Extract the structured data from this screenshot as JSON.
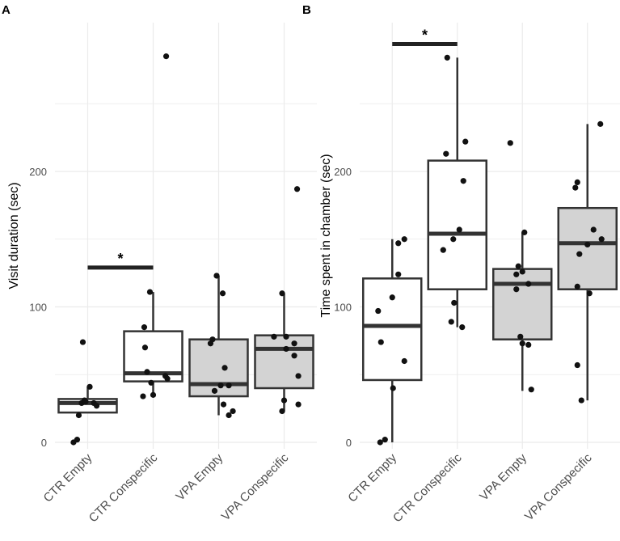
{
  "colors": {
    "white_box": "#ffffff",
    "grey_box": "#d3d3d3",
    "stroke": "#333333",
    "point": "#111111",
    "grid": "#ebebeb"
  },
  "chart_data": [
    {
      "type": "box",
      "panel": "A",
      "ylabel": "Visit duration (sec)",
      "xlabel": "",
      "categories": [
        "CTR Empty",
        "CTR Conspecific",
        "VPA Empty",
        "VPA Conspecific"
      ],
      "ylim": [
        -8,
        298
      ],
      "yticks": [
        0,
        100,
        200
      ],
      "grid": true,
      "boxes": [
        {
          "fill": "white",
          "q1": 22,
          "median": 29,
          "q3": 32,
          "whisker_low": 22,
          "whisker_high": 41,
          "points": [
            [
              -0.35,
              0
            ],
            [
              -0.26,
              2
            ],
            [
              -0.22,
              20
            ],
            [
              -0.08,
              31
            ],
            [
              -0.15,
              29
            ],
            [
              -0.05,
              30
            ],
            [
              0.05,
              41
            ],
            [
              0.15,
              29
            ],
            [
              0.22,
              27
            ],
            [
              -0.12,
              74
            ]
          ]
        },
        {
          "fill": "white",
          "q1": 45,
          "median": 51,
          "q3": 82,
          "whisker_low": 35,
          "whisker_high": 111,
          "points": [
            [
              -0.25,
              34
            ],
            [
              0.0,
              35
            ],
            [
              -0.2,
              70
            ],
            [
              -0.15,
              52
            ],
            [
              -0.22,
              85
            ],
            [
              -0.08,
              111
            ],
            [
              -0.05,
              44
            ],
            [
              0.3,
              49
            ],
            [
              0.35,
              47
            ],
            [
              0.32,
              285
            ]
          ]
        },
        {
          "fill": "grey",
          "q1": 34,
          "median": 43,
          "q3": 76,
          "whisker_low": 20,
          "whisker_high": 123,
          "points": [
            [
              -0.1,
              38
            ],
            [
              -0.2,
              73
            ],
            [
              -0.15,
              76
            ],
            [
              -0.05,
              123
            ],
            [
              0.1,
              110
            ],
            [
              0.15,
              55
            ],
            [
              0.05,
              42
            ],
            [
              0.25,
              42
            ],
            [
              0.12,
              28
            ],
            [
              0.25,
              20
            ],
            [
              0.35,
              23
            ]
          ]
        },
        {
          "fill": "grey",
          "q1": 40,
          "median": 69,
          "q3": 79,
          "whisker_low": 23,
          "whisker_high": 110,
          "points": [
            [
              -0.25,
              78
            ],
            [
              -0.05,
              110
            ],
            [
              0.05,
              78
            ],
            [
              0.05,
              69
            ],
            [
              0.25,
              73
            ],
            [
              0.25,
              64
            ],
            [
              0.35,
              49
            ],
            [
              0.35,
              28
            ],
            [
              0.0,
              31
            ],
            [
              -0.05,
              23
            ],
            [
              0.32,
              187
            ]
          ]
        }
      ],
      "significance": {
        "from": "CTR Empty",
        "to": "CTR Conspecific",
        "y": 129,
        "label": "*"
      }
    },
    {
      "type": "box",
      "panel": "B",
      "ylabel": "Time spent in chamber (sec)",
      "xlabel": "",
      "categories": [
        "CTR Empty",
        "CTR Conspecific",
        "VPA Empty",
        "VPA Conspecific"
      ],
      "ylim": [
        -8,
        298
      ],
      "yticks": [
        0,
        100,
        200
      ],
      "grid": true,
      "boxes": [
        {
          "fill": "white",
          "q1": 46,
          "median": 86,
          "q3": 121,
          "whisker_low": 0,
          "whisker_high": 150,
          "points": [
            [
              -0.3,
              0
            ],
            [
              -0.18,
              2
            ],
            [
              -0.35,
              97
            ],
            [
              -0.28,
              74
            ],
            [
              0.0,
              107
            ],
            [
              0.15,
              147
            ],
            [
              0.3,
              150
            ],
            [
              0.15,
              124
            ],
            [
              0.3,
              60
            ],
            [
              0.02,
              40
            ]
          ]
        },
        {
          "fill": "white",
          "q1": 113,
          "median": 154,
          "q3": 208,
          "whisker_low": 85,
          "whisker_high": 284,
          "points": [
            [
              -0.25,
              284
            ],
            [
              -0.28,
              213
            ],
            [
              -0.35,
              142
            ],
            [
              -0.1,
              150
            ],
            [
              -0.08,
              103
            ],
            [
              -0.15,
              89
            ],
            [
              0.05,
              157
            ],
            [
              0.12,
              85
            ],
            [
              0.15,
              193
            ],
            [
              0.2,
              222
            ]
          ]
        },
        {
          "fill": "grey",
          "q1": 76,
          "median": 117,
          "q3": 128,
          "whisker_low": 38,
          "whisker_high": 155,
          "points": [
            [
              -0.3,
              221
            ],
            [
              -0.1,
              130
            ],
            [
              -0.15,
              124
            ],
            [
              -0.15,
              113
            ],
            [
              0.0,
              126
            ],
            [
              0.05,
              155
            ],
            [
              0.15,
              117
            ],
            [
              -0.05,
              78
            ],
            [
              0.0,
              73
            ],
            [
              0.15,
              72
            ],
            [
              0.22,
              39
            ]
          ]
        },
        {
          "fill": "grey",
          "q1": 113,
          "median": 147,
          "q3": 173,
          "whisker_low": 31,
          "whisker_high": 235,
          "points": [
            [
              -0.3,
              188
            ],
            [
              -0.25,
              192
            ],
            [
              -0.2,
              139
            ],
            [
              -0.25,
              115
            ],
            [
              0.0,
              146
            ],
            [
              0.15,
              157
            ],
            [
              0.05,
              110
            ],
            [
              0.35,
              150
            ],
            [
              0.32,
              235
            ],
            [
              -0.25,
              57
            ],
            [
              -0.15,
              31
            ]
          ]
        }
      ],
      "significance": {
        "from": "CTR Empty",
        "to": "CTR Conspecific",
        "y": 294,
        "label": "*"
      }
    }
  ]
}
